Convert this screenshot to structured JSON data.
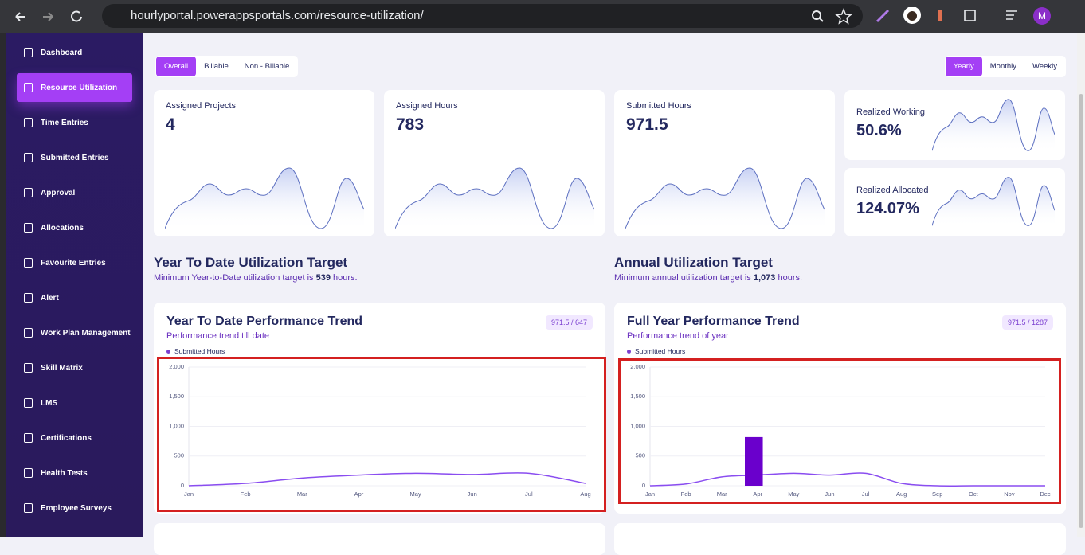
{
  "browser": {
    "url": "hourlyportal.powerappsportals.com/resource-utilization/",
    "profile": "M"
  },
  "sidebar": {
    "active": 1,
    "items": [
      "Dashboard",
      "Resource Utilization",
      "Time Entries",
      "Submitted Entries",
      "Approval",
      "Allocations",
      "Favourite Entries",
      "Alert",
      "Work Plan Management",
      "Skill Matrix",
      "LMS",
      "Certifications",
      "Health Tests",
      "Employee Surveys"
    ]
  },
  "tabs": {
    "scope": {
      "active": 0,
      "items": [
        "Overall",
        "Billable",
        "Non - Billable"
      ]
    },
    "period": {
      "active": 0,
      "items": [
        "Yearly",
        "Monthly",
        "Weekly"
      ]
    }
  },
  "cards": [
    {
      "label": "Assigned Projects",
      "value": "4"
    },
    {
      "label": "Assigned Hours",
      "value": "783"
    },
    {
      "label": "Submitted Hours",
      "value": "971.5"
    },
    {
      "label": "Realized Working",
      "value": "50.6%"
    },
    {
      "label": "Realized Allocated",
      "value": "124.07%"
    }
  ],
  "targets": [
    {
      "title": "Year To Date Utilization Target",
      "text_before": "Minimum Year-to-Date utilization target is",
      "hours": "539",
      "text_after": "hours."
    },
    {
      "title": "Annual Utilization Target",
      "text_before": "Minimum annual utilization target is",
      "hours": "1,073",
      "text_after": "hours."
    }
  ],
  "charts": [
    {
      "type": "line",
      "title": "Year To Date Performance Trend",
      "subtitle": "Performance trend till date",
      "badge": "971.5 / 647",
      "categories": [
        "Jan",
        "Feb",
        "Mar",
        "Apr",
        "May",
        "Jun",
        "Jul",
        "Aug"
      ],
      "series": [
        {
          "name": "Submitted Hours",
          "color": "#8a4df0",
          "values": [
            0,
            40,
            130,
            180,
            210,
            190,
            210,
            40
          ]
        }
      ],
      "ylim": [
        0,
        2000
      ],
      "yticks": [
        0,
        500,
        {
          "value": 1000,
          "label": "1,000"
        },
        {
          "value": 1500,
          "label": "1,500"
        },
        {
          "value": 2000,
          "label": "2,000"
        }
      ],
      "grid": true
    },
    {
      "type": "line",
      "title": "Full Year Performance Trend",
      "subtitle": "Performance trend of year",
      "badge": "971.5 / 1287",
      "categories": [
        "Jan",
        "Feb",
        "Mar",
        "Apr",
        "May",
        "Jun",
        "Jul",
        "Aug",
        "Sep",
        "Oct",
        "Nov",
        "Dec"
      ],
      "series": [
        {
          "name": "Submitted Hours",
          "color": "#8a4df0",
          "values": [
            0,
            30,
            150,
            180,
            210,
            180,
            210,
            40,
            0,
            0,
            0,
            0
          ]
        },
        {
          "type": "bar",
          "color": "#6a00cc",
          "values": [
            null,
            null,
            null,
            820,
            null,
            null,
            null,
            null,
            null,
            null,
            null,
            null
          ]
        }
      ],
      "ylim": [
        0,
        2000
      ],
      "yticks": [
        0,
        500,
        {
          "value": 1000,
          "label": "1,000"
        },
        {
          "value": 1500,
          "label": "1,500"
        },
        {
          "value": 2000,
          "label": "2,000"
        }
      ],
      "grid": true
    }
  ]
}
